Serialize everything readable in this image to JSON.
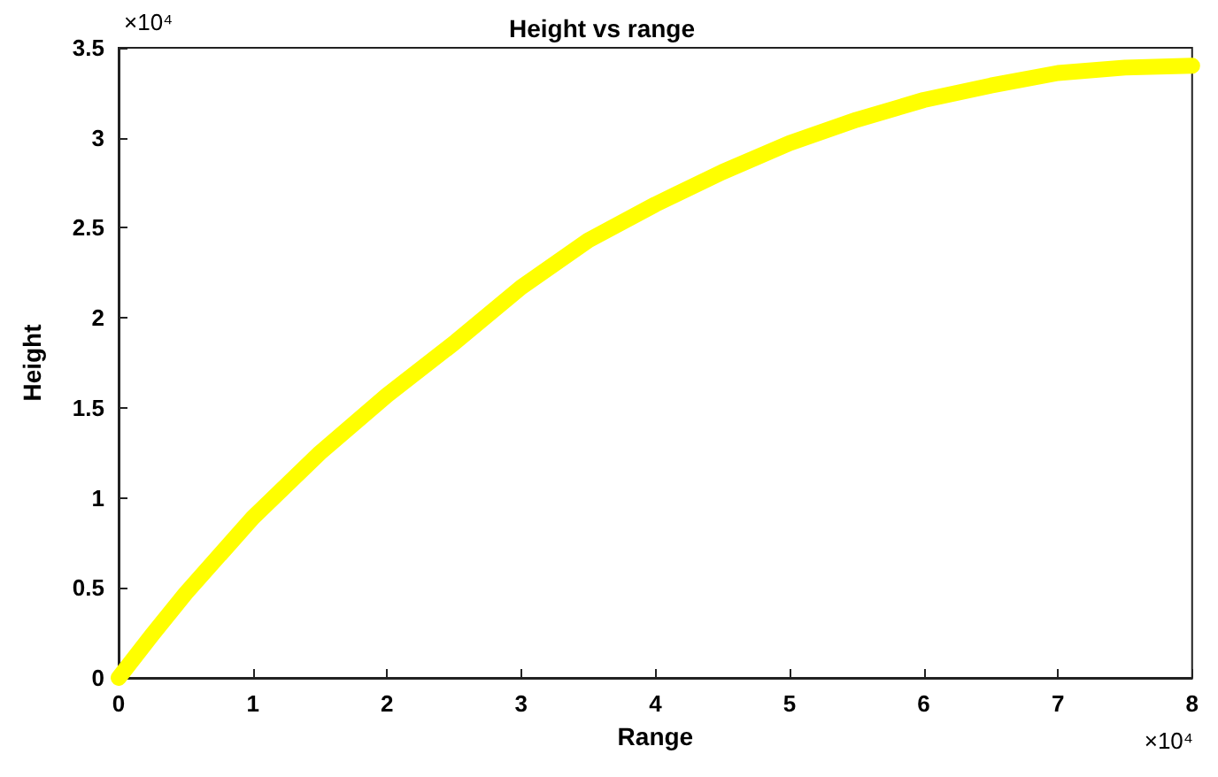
{
  "chart_data": {
    "type": "line",
    "title": "Height vs range",
    "xlabel": "Range",
    "ylabel": "Height",
    "x": [
      0,
      0.25,
      0.5,
      1,
      1.5,
      2,
      2.5,
      3,
      3.5,
      4,
      4.5,
      5,
      5.5,
      6,
      6.5,
      7,
      7.5,
      8
    ],
    "series": [
      {
        "color": "#ffff00",
        "values": [
          0,
          0.24,
          0.47,
          0.89,
          1.25,
          1.57,
          1.86,
          2.17,
          2.43,
          2.63,
          2.81,
          2.97,
          3.1,
          3.21,
          3.29,
          3.36,
          3.39,
          3.4
        ]
      }
    ],
    "xlim": [
      0,
      8
    ],
    "xticks": [
      0,
      1,
      2,
      3,
      4,
      5,
      6,
      7,
      8
    ],
    "ylim": [
      0,
      3.5
    ],
    "yticks": [
      0,
      0.5,
      1,
      1.5,
      2,
      2.5,
      3,
      3.5
    ],
    "annotations": [
      "×10⁴",
      "×10⁴"
    ],
    "grid": false,
    "line_style": "solid"
  }
}
